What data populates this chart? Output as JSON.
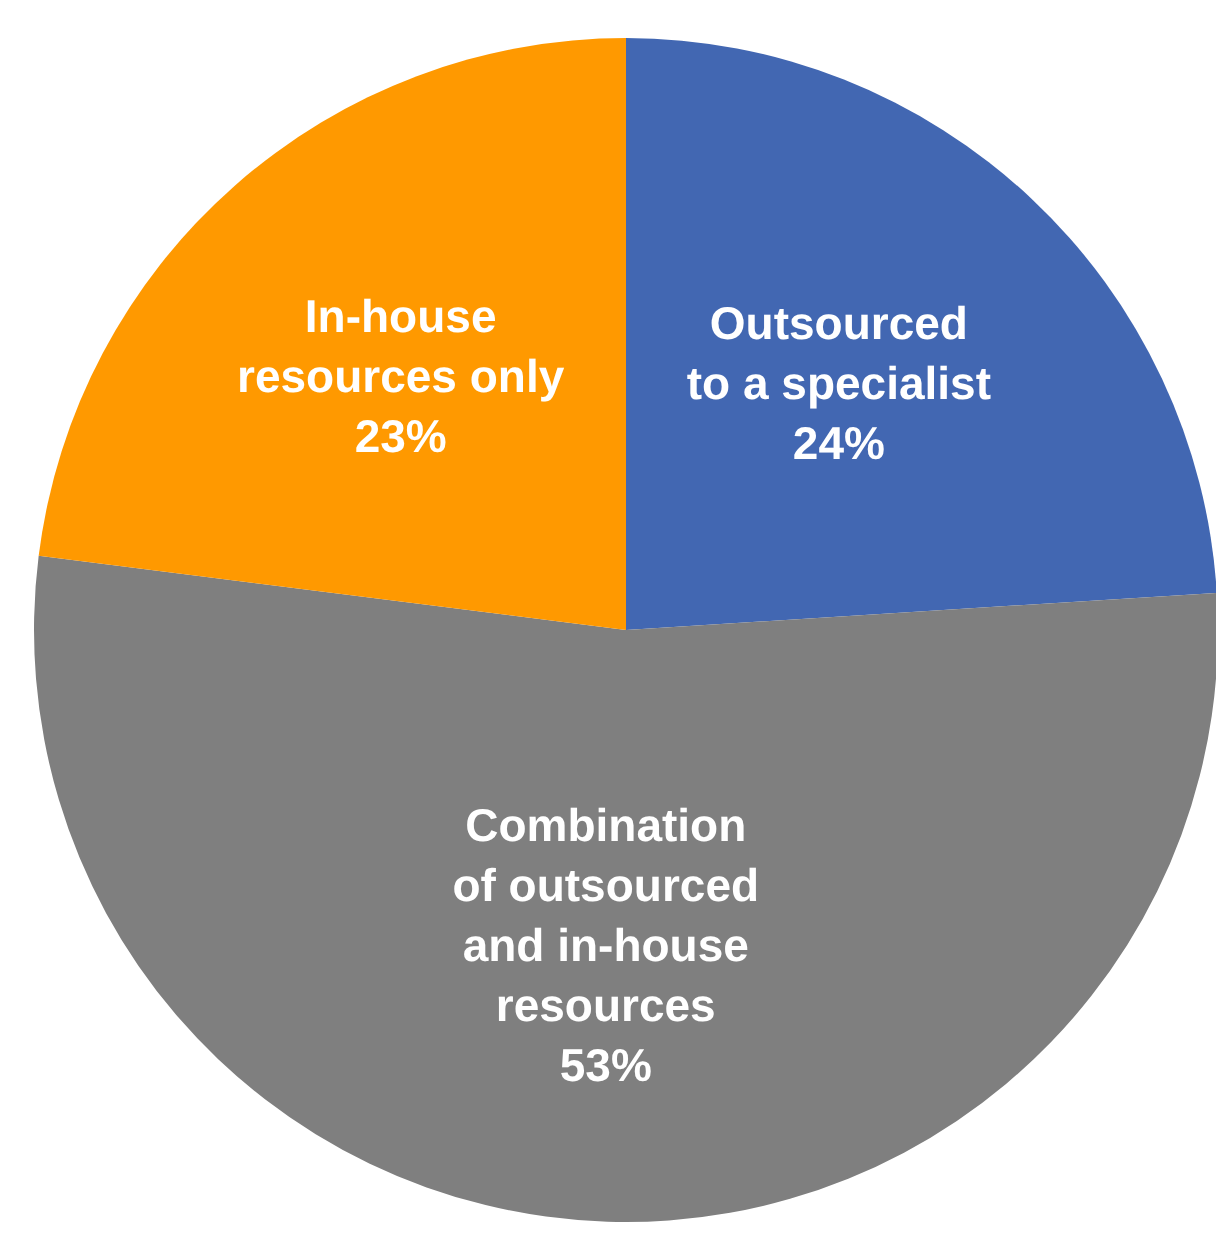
{
  "chart_data": {
    "type": "pie",
    "categories": [
      "Outsourced\nto a specialist",
      "Combination\nof outsourced\nand in-house\nresources",
      "In-house\nresources only"
    ],
    "values": [
      24,
      53,
      23
    ],
    "value_labels": [
      "24%",
      "53%",
      "23%"
    ],
    "colors": [
      "#4267b2",
      "#7f7f7f",
      "#ff9900"
    ],
    "legend": false
  }
}
